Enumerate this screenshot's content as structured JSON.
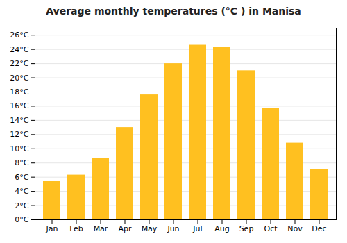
{
  "chart_data": {
    "type": "bar",
    "title": "Average monthly temperatures (°C ) in Manisa",
    "categories": [
      "Jan",
      "Feb",
      "Mar",
      "Apr",
      "May",
      "Jun",
      "Jul",
      "Aug",
      "Sep",
      "Oct",
      "Nov",
      "Dec"
    ],
    "values": [
      5.4,
      6.3,
      8.7,
      13.0,
      17.6,
      22.0,
      24.6,
      24.3,
      21.0,
      15.7,
      10.8,
      7.1
    ],
    "color": "#FFC020",
    "ylim": [
      0,
      27
    ],
    "yticks": [
      {
        "value": 0,
        "label": "0°C"
      },
      {
        "value": 2,
        "label": "2°C"
      },
      {
        "value": 4,
        "label": "4°C"
      },
      {
        "value": 6,
        "label": "6°C"
      },
      {
        "value": 8,
        "label": "8°C"
      },
      {
        "value": 10,
        "label": "10°C"
      },
      {
        "value": 12,
        "label": "12°C"
      },
      {
        "value": 14,
        "label": "14°C"
      },
      {
        "value": 16,
        "label": "16°C"
      },
      {
        "value": 18,
        "label": "18°C"
      },
      {
        "value": 20,
        "label": "20°C"
      },
      {
        "value": 22,
        "label": "22°C"
      },
      {
        "value": 24,
        "label": "24°C"
      },
      {
        "value": 26,
        "label": "26°C"
      }
    ],
    "grid": true
  }
}
